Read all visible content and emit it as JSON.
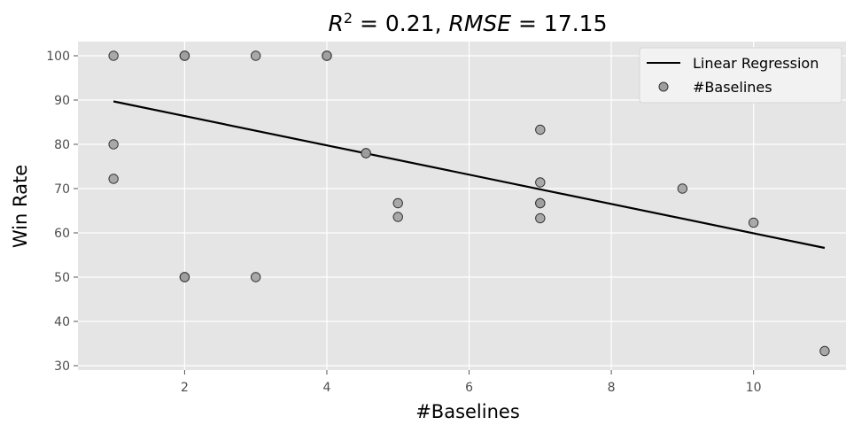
{
  "chart_data": {
    "type": "scatter",
    "title": "R² = 0.21, RMSE = 17.15",
    "title_parts": {
      "r2": "0.21",
      "rmse": "17.15"
    },
    "xlabel": "#Baselines",
    "ylabel": "Win Rate",
    "xlim": [
      0.5,
      11.3
    ],
    "ylim": [
      29,
      103.2
    ],
    "xticks": [
      2,
      4,
      6,
      8,
      10
    ],
    "yticks": [
      30,
      40,
      50,
      60,
      70,
      80,
      90,
      100
    ],
    "grid": true,
    "legend_position": "top-right",
    "series": [
      {
        "name": "#Baselines",
        "kind": "scatter",
        "color": "#9e9e9e",
        "edgecolor": "#333333",
        "points": [
          {
            "x": 1,
            "y": 100
          },
          {
            "x": 1,
            "y": 80
          },
          {
            "x": 1,
            "y": 72.2
          },
          {
            "x": 2,
            "y": 100
          },
          {
            "x": 2,
            "y": 100
          },
          {
            "x": 2,
            "y": 50
          },
          {
            "x": 2,
            "y": 50
          },
          {
            "x": 3,
            "y": 100
          },
          {
            "x": 3,
            "y": 50
          },
          {
            "x": 4,
            "y": 100
          },
          {
            "x": 4,
            "y": 100
          },
          {
            "x": 4.55,
            "y": 78
          },
          {
            "x": 4.55,
            "y": 78
          },
          {
            "x": 5,
            "y": 66.7
          },
          {
            "x": 5,
            "y": 63.6
          },
          {
            "x": 7,
            "y": 83.3
          },
          {
            "x": 7,
            "y": 71.4
          },
          {
            "x": 7,
            "y": 66.7
          },
          {
            "x": 7,
            "y": 66.7
          },
          {
            "x": 7,
            "y": 63.3
          },
          {
            "x": 9,
            "y": 70
          },
          {
            "x": 10,
            "y": 62.3
          },
          {
            "x": 11,
            "y": 33.3
          }
        ]
      },
      {
        "name": "Linear Regression",
        "kind": "line",
        "color": "#000000",
        "points": [
          {
            "x": 1,
            "y": 89.7
          },
          {
            "x": 11,
            "y": 56.6
          }
        ]
      }
    ],
    "legend": [
      "Linear Regression",
      "#Baselines"
    ]
  }
}
